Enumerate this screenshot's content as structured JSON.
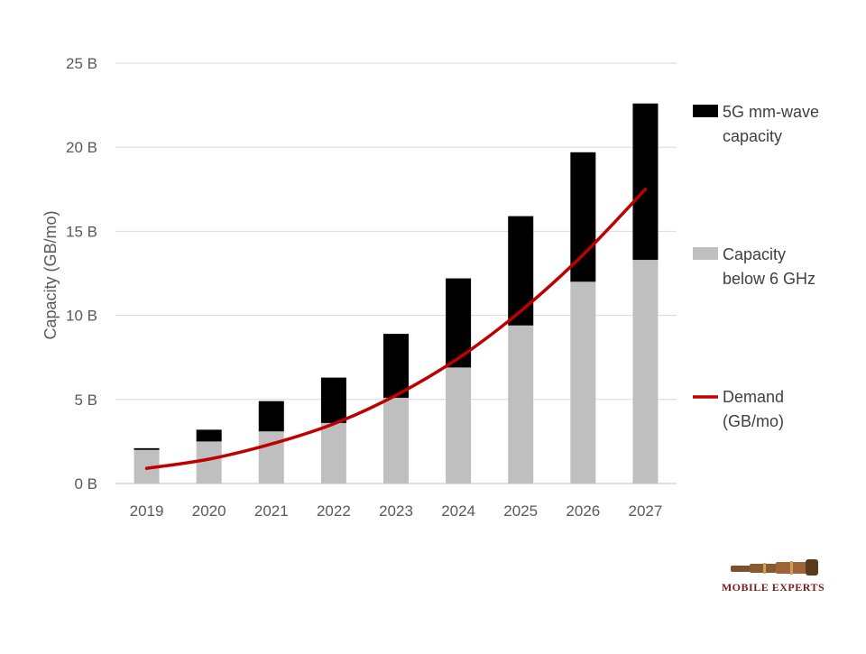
{
  "chart_data": {
    "type": "bar",
    "stacked": true,
    "categories": [
      "2019",
      "2020",
      "2021",
      "2022",
      "2023",
      "2024",
      "2025",
      "2026",
      "2027"
    ],
    "series": [
      {
        "name": "Capacity below 6 GHz",
        "kind": "bar",
        "color": "#bfbfbf",
        "values": [
          2.0,
          2.5,
          3.1,
          3.6,
          5.1,
          6.9,
          9.4,
          12.0,
          13.3
        ]
      },
      {
        "name": "5G mm-wave capacity",
        "kind": "bar",
        "color": "#000000",
        "values": [
          0.1,
          0.7,
          1.8,
          2.7,
          3.8,
          5.3,
          6.5,
          7.7,
          9.3
        ]
      },
      {
        "name": "Demand (GB/mo)",
        "kind": "line",
        "color": "#c00000",
        "values": [
          0.9,
          1.45,
          2.35,
          3.55,
          5.25,
          7.45,
          10.25,
          13.6,
          17.5
        ]
      }
    ],
    "ylabel": "Capacity (GB/mo)",
    "ylim": [
      0,
      25
    ],
    "yticks": [
      0,
      5,
      10,
      15,
      20,
      25
    ],
    "ytick_labels": [
      "0 B",
      "5 B",
      "10 B",
      "15 B",
      "20 B",
      "25 B"
    ],
    "grid": true,
    "legend": {
      "placement": "right",
      "items": [
        {
          "lines": [
            "5G mm-wave",
            "capacity"
          ],
          "swatch": "box",
          "color": "#000000"
        },
        {
          "lines": [
            "Capacity",
            "below 6 GHz"
          ],
          "swatch": "box",
          "color": "#bfbfbf"
        },
        {
          "lines": [
            "Demand",
            "(GB/mo)"
          ],
          "swatch": "line",
          "color": "#c00000"
        }
      ]
    }
  },
  "logo": {
    "text": "Mobile Experts"
  }
}
